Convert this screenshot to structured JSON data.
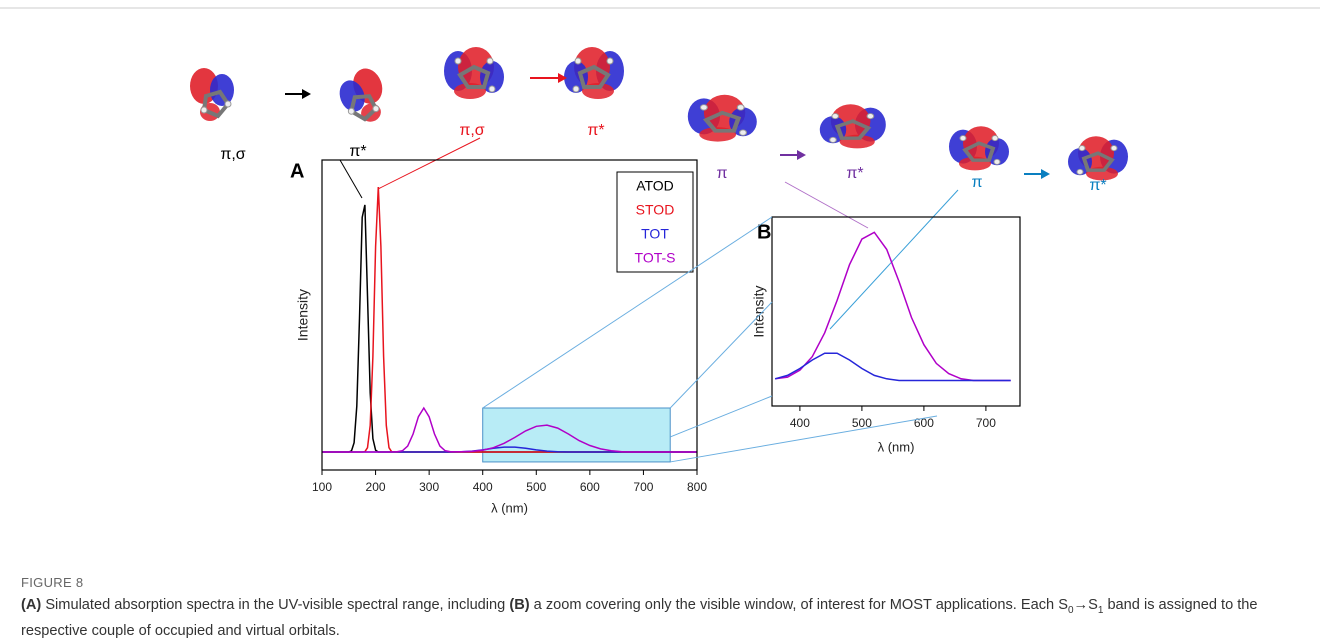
{
  "chart_data": [
    {
      "type": "line",
      "panel_label": "A",
      "x_label": "λ (nm)",
      "y_label": "Intensity",
      "xlim": [
        100,
        800
      ],
      "xticks": [
        100,
        200,
        300,
        400,
        500,
        600,
        700,
        800
      ],
      "ylim": [
        0,
        1
      ],
      "legend": "upper right",
      "zoom_region": {
        "x": [
          400,
          750
        ],
        "y": [
          0.026,
          0.2
        ]
      },
      "x": [
        100,
        120,
        140,
        150,
        155,
        160,
        165,
        170,
        175,
        180,
        185,
        190,
        195,
        200,
        205,
        210,
        215,
        220,
        225,
        230,
        240,
        250,
        260,
        270,
        280,
        290,
        300,
        310,
        320,
        330,
        340,
        360,
        380,
        400,
        420,
        440,
        460,
        480,
        500,
        520,
        540,
        560,
        580,
        600,
        620,
        640,
        660,
        680,
        700,
        720,
        740,
        760,
        780,
        800
      ],
      "series": [
        {
          "name": "ATOD",
          "color": "#000000",
          "values": [
            0.058,
            0.058,
            0.058,
            0.058,
            0.062,
            0.088,
            0.206,
            0.49,
            0.815,
            0.855,
            0.562,
            0.249,
            0.101,
            0.064,
            0.058,
            0.058,
            0.058,
            0.058,
            0.058,
            0.058,
            0.058,
            0.058,
            0.058,
            0.058,
            0.058,
            0.058,
            0.058,
            0.058,
            0.058,
            0.058,
            0.058,
            0.058,
            0.058,
            0.058,
            0.058,
            0.058,
            0.058,
            0.058,
            0.058,
            0.058,
            0.058,
            0.058,
            0.058,
            0.058,
            0.058,
            0.058,
            0.058,
            0.058,
            0.058,
            0.058,
            0.058,
            0.058,
            0.058,
            0.058
          ]
        },
        {
          "name": "STOD",
          "color": "#e8141e",
          "values": [
            0.058,
            0.058,
            0.058,
            0.058,
            0.058,
            0.058,
            0.058,
            0.058,
            0.058,
            0.059,
            0.072,
            0.144,
            0.366,
            0.721,
            0.913,
            0.721,
            0.366,
            0.144,
            0.072,
            0.059,
            0.058,
            0.058,
            0.058,
            0.058,
            0.058,
            0.058,
            0.058,
            0.058,
            0.058,
            0.058,
            0.058,
            0.058,
            0.058,
            0.058,
            0.058,
            0.058,
            0.058,
            0.058,
            0.058,
            0.058,
            0.058,
            0.058,
            0.058,
            0.058,
            0.058,
            0.058,
            0.058,
            0.058,
            0.058,
            0.058,
            0.058,
            0.058,
            0.058,
            0.058
          ]
        },
        {
          "name": "TOT",
          "color": "#2626d9",
          "values": [
            0.058,
            0.058,
            0.058,
            0.058,
            0.058,
            0.058,
            0.058,
            0.058,
            0.058,
            0.058,
            0.058,
            0.058,
            0.058,
            0.058,
            0.058,
            0.058,
            0.058,
            0.058,
            0.058,
            0.058,
            0.058,
            0.058,
            0.058,
            0.058,
            0.058,
            0.058,
            0.058,
            0.058,
            0.058,
            0.058,
            0.058,
            0.059,
            0.061,
            0.065,
            0.07,
            0.074,
            0.074,
            0.07,
            0.065,
            0.061,
            0.059,
            0.058,
            0.058,
            0.058,
            0.058,
            0.058,
            0.058,
            0.058,
            0.058,
            0.058,
            0.058,
            0.058,
            0.058,
            0.058
          ]
        },
        {
          "name": "TOT-S",
          "color": "#b000c8",
          "values": [
            0.058,
            0.058,
            0.058,
            0.058,
            0.058,
            0.058,
            0.058,
            0.058,
            0.058,
            0.058,
            0.058,
            0.058,
            0.058,
            0.058,
            0.058,
            0.058,
            0.058,
            0.058,
            0.058,
            0.058,
            0.059,
            0.062,
            0.077,
            0.116,
            0.172,
            0.2,
            0.172,
            0.116,
            0.077,
            0.062,
            0.059,
            0.059,
            0.06,
            0.064,
            0.072,
            0.086,
            0.105,
            0.126,
            0.141,
            0.145,
            0.135,
            0.116,
            0.095,
            0.079,
            0.068,
            0.062,
            0.059,
            0.058,
            0.058,
            0.058,
            0.058,
            0.058,
            0.058,
            0.058
          ]
        }
      ]
    },
    {
      "type": "line",
      "panel_label": "B",
      "x_label": "λ (nm)",
      "y_label": "Intensity",
      "xlim": [
        355,
        755
      ],
      "xticks": [
        400,
        500,
        600,
        700
      ],
      "ylim": [
        0.043,
        0.154
      ],
      "x": [
        360,
        380,
        400,
        420,
        440,
        460,
        480,
        500,
        520,
        540,
        560,
        580,
        600,
        620,
        640,
        660,
        680,
        700,
        720,
        740
      ],
      "series": [
        {
          "color": "#b000c8",
          "values": [
            0.059,
            0.06,
            0.064,
            0.072,
            0.086,
            0.105,
            0.126,
            0.141,
            0.145,
            0.135,
            0.116,
            0.095,
            0.079,
            0.068,
            0.062,
            0.059,
            0.058,
            0.058,
            0.058,
            0.058
          ]
        },
        {
          "color": "#2626d9",
          "values": [
            0.059,
            0.061,
            0.065,
            0.07,
            0.074,
            0.074,
            0.07,
            0.065,
            0.061,
            0.059,
            0.058,
            0.058,
            0.058,
            0.058,
            0.058,
            0.058,
            0.058,
            0.058,
            0.058,
            0.058
          ]
        }
      ]
    }
  ],
  "transitions": [
    {
      "from": "π,σ",
      "to": "π*",
      "color": "#000000"
    },
    {
      "from": "π,σ",
      "to": "π*",
      "color": "#e8141e"
    },
    {
      "from": "π",
      "to": "π*",
      "color": "#7030a0"
    },
    {
      "from": "π",
      "to": "π*",
      "color": "#0a7fc0"
    }
  ],
  "caption": {
    "label": "FIGURE 8",
    "parts": [
      "(A)",
      " Simulated absorption spectra in the UV-visible spectral range, including ",
      "(B)",
      " a zoom covering only the visible window, of interest for MOST applications. Each S",
      "0",
      "→S",
      "1",
      " band is assigned to the respective couple of occupied and virtual orbitals."
    ]
  }
}
